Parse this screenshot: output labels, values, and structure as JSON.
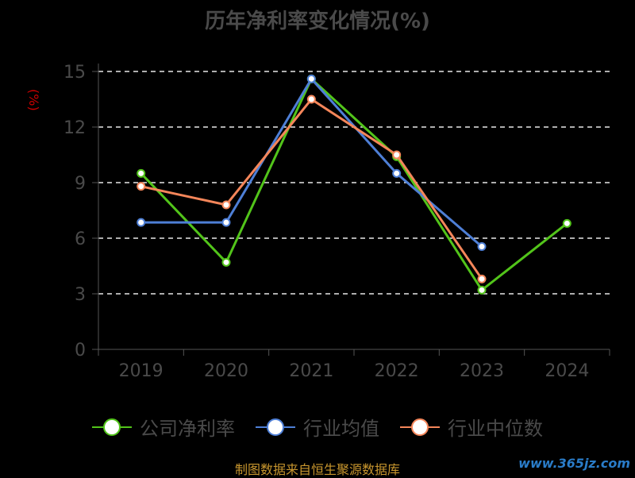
{
  "chart_data": {
    "type": "line",
    "title": "历年净利率变化情况(%)",
    "ylabel": "(%)",
    "categories": [
      "2019",
      "2020",
      "2021",
      "2022",
      "2023",
      "2024"
    ],
    "ylim": [
      0,
      15
    ],
    "yticks": [
      0,
      3,
      6,
      9,
      12,
      15
    ],
    "grid": true,
    "legend_position": "bottom",
    "series": [
      {
        "name": "公司净利率",
        "color": "#52c41a",
        "values": [
          9.5,
          4.7,
          14.6,
          10.4,
          3.2,
          6.8
        ]
      },
      {
        "name": "行业均值",
        "color": "#4e7fd6",
        "values": [
          6.85,
          6.85,
          14.6,
          9.5,
          5.55,
          null
        ]
      },
      {
        "name": "行业中位数",
        "color": "#f5865a",
        "values": [
          8.8,
          7.8,
          13.5,
          10.5,
          3.8,
          null
        ]
      }
    ]
  },
  "source_text": "制图数据来自恒生聚源数据库",
  "watermark_text": "www.365jz.com"
}
